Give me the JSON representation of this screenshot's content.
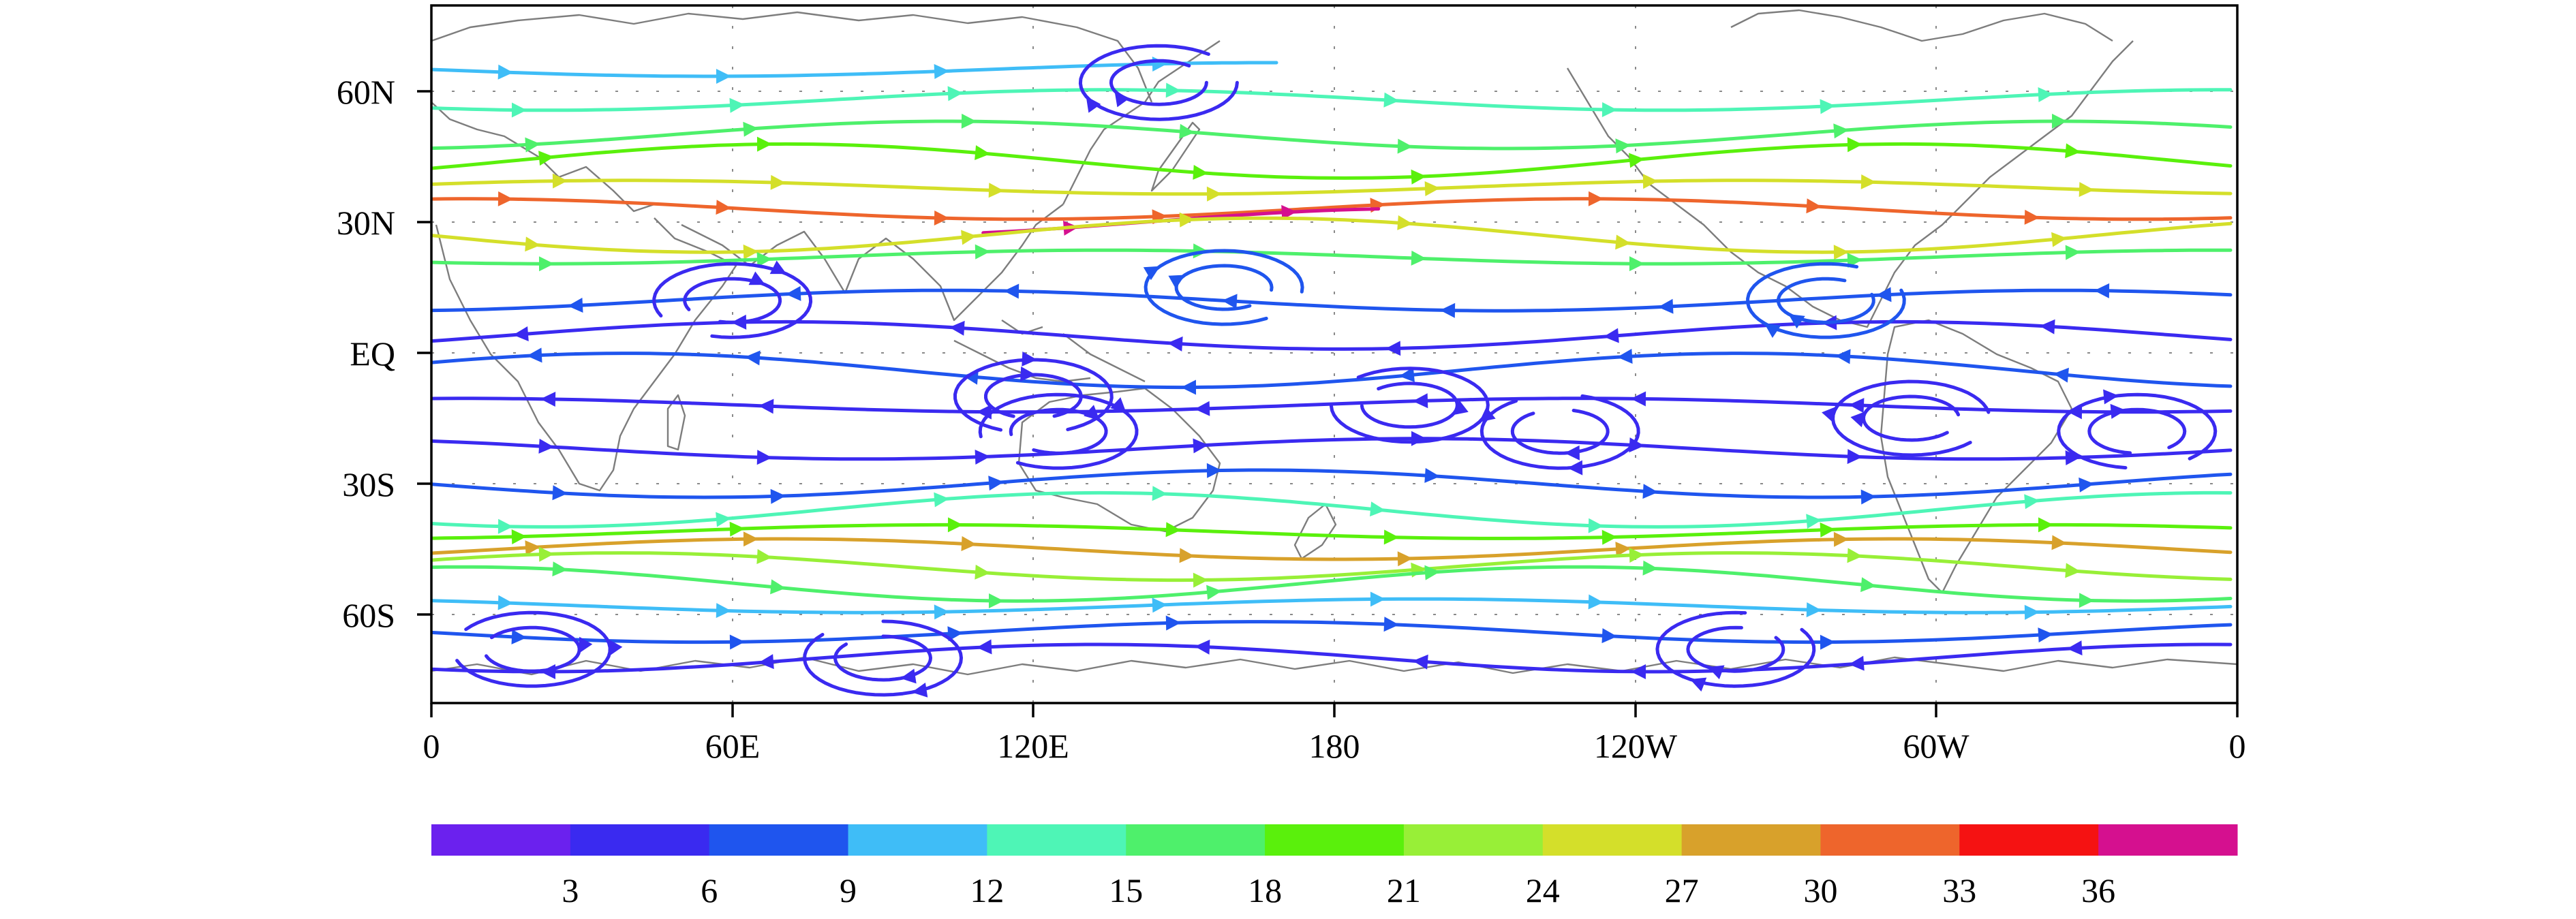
{
  "map": {
    "lat_labels": [
      "60N",
      "30N",
      "EQ",
      "30S",
      "60S"
    ],
    "lon_labels": [
      "0",
      "60E",
      "120E",
      "180",
      "120W",
      "60W",
      "0"
    ]
  },
  "colorbar": {
    "colors": [
      "#6b21ee",
      "#3a2af0",
      "#1f55ee",
      "#3fbdf7",
      "#4ef5b6",
      "#4ef06b",
      "#5af00c",
      "#98ef37",
      "#d4df2a",
      "#d8a12b",
      "#ee652c",
      "#f51212",
      "#d5108f"
    ],
    "tick_labels": [
      "3",
      "6",
      "9",
      "12",
      "15",
      "18",
      "21",
      "24",
      "27",
      "30",
      "33",
      "36"
    ]
  },
  "streamlines": [
    {
      "lat": 65,
      "speed": 10,
      "dir": "E",
      "lon_range": [
        0,
        170
      ]
    },
    {
      "lat": 58,
      "speed": 12,
      "dir": "E",
      "lon_range": [
        0,
        360
      ]
    },
    {
      "lat": 50,
      "speed": 15,
      "dir": "E",
      "lon_range": [
        0,
        360
      ]
    },
    {
      "lat": 44,
      "speed": 18,
      "dir": "E",
      "lon_range": [
        0,
        360
      ]
    },
    {
      "lat": 38,
      "speed": 24,
      "dir": "E",
      "lon_range": [
        0,
        360
      ]
    },
    {
      "lat": 33,
      "speed": 30,
      "dir": "E",
      "lon_range": [
        0,
        360
      ]
    },
    {
      "lat": 30,
      "speed": 36,
      "dir": "E",
      "lon_range": [
        110,
        190
      ]
    },
    {
      "lat": 27,
      "speed": 24,
      "dir": "E",
      "lon_range": [
        0,
        360
      ]
    },
    {
      "lat": 22,
      "speed": 15,
      "dir": "E",
      "lon_range": [
        0,
        360
      ]
    },
    {
      "lat": 12,
      "speed": 6,
      "dir": "W",
      "lon_range": [
        0,
        360
      ]
    },
    {
      "lat": 4,
      "speed": 5,
      "dir": "W",
      "lon_range": [
        0,
        360
      ]
    },
    {
      "lat": -4,
      "speed": 6,
      "dir": "W",
      "lon_range": [
        0,
        360
      ]
    },
    {
      "lat": -12,
      "speed": 4,
      "dir": "W",
      "lon_range": [
        0,
        360
      ]
    },
    {
      "lat": -22,
      "speed": 5,
      "dir": "E",
      "lon_range": [
        0,
        360
      ]
    },
    {
      "lat": -30,
      "speed": 8,
      "dir": "E",
      "lon_range": [
        0,
        360
      ]
    },
    {
      "lat": -36,
      "speed": 14,
      "dir": "E",
      "lon_range": [
        0,
        360
      ]
    },
    {
      "lat": -41,
      "speed": 20,
      "dir": "E",
      "lon_range": [
        0,
        360
      ]
    },
    {
      "lat": -45,
      "speed": 27,
      "dir": "E",
      "lon_range": [
        0,
        360
      ]
    },
    {
      "lat": -49,
      "speed": 22,
      "dir": "E",
      "lon_range": [
        0,
        360
      ]
    },
    {
      "lat": -53,
      "speed": 17,
      "dir": "E",
      "lon_range": [
        0,
        360
      ]
    },
    {
      "lat": -58,
      "speed": 11,
      "dir": "E",
      "lon_range": [
        0,
        360
      ]
    },
    {
      "lat": -64,
      "speed": 6,
      "dir": "E",
      "lon_range": [
        0,
        360
      ]
    },
    {
      "lat": -70,
      "speed": 4,
      "dir": "W",
      "lon_range": [
        0,
        360
      ]
    }
  ],
  "vortices": [
    {
      "lon": 145,
      "lat": 62,
      "speed": 5
    },
    {
      "lon": 158,
      "lat": 15,
      "speed": 6
    },
    {
      "lon": 120,
      "lat": -10,
      "speed": 5
    },
    {
      "lon": 125,
      "lat": -18,
      "speed": 4
    },
    {
      "lon": 195,
      "lat": -12,
      "speed": 4
    },
    {
      "lon": 225,
      "lat": -18,
      "speed": 4
    },
    {
      "lon": 278,
      "lat": 12,
      "speed": 6
    },
    {
      "lon": 295,
      "lat": -15,
      "speed": 5
    },
    {
      "lon": 340,
      "lat": -18,
      "speed": 5
    },
    {
      "lon": 60,
      "lat": 12,
      "speed": 4
    },
    {
      "lon": 20,
      "lat": -68,
      "speed": 4
    },
    {
      "lon": 90,
      "lat": -70,
      "speed": 4
    },
    {
      "lon": 260,
      "lat": -68,
      "speed": 4
    }
  ]
}
